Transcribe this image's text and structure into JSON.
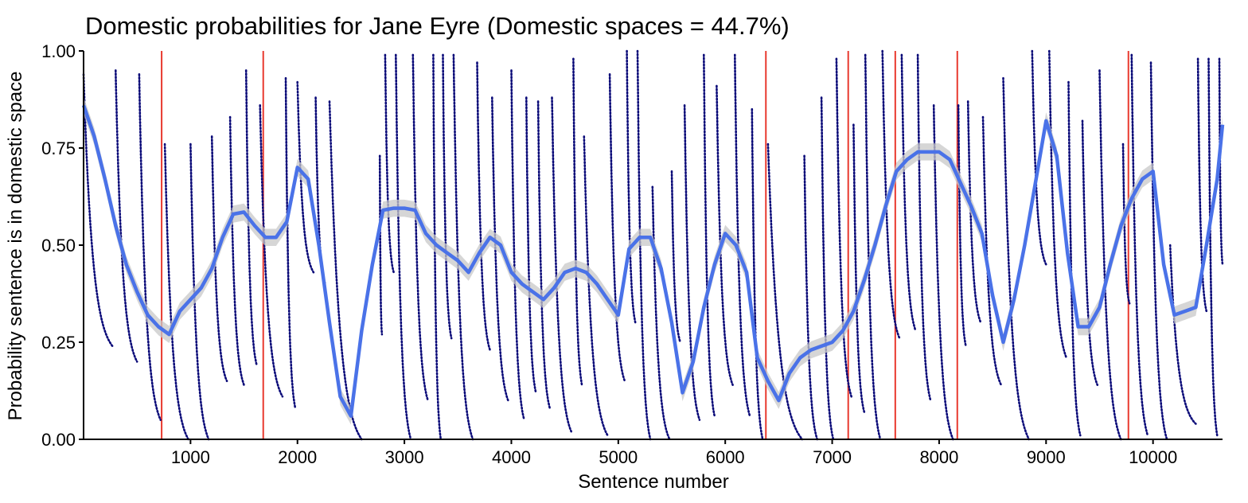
{
  "chart_data": {
    "type": "line",
    "title": "Domestic probabilities for Jane Eyre (Domestic spaces = 44.7%)",
    "xlabel": "Sentence number",
    "ylabel": "Probability sentence is in domestic space",
    "xlim": [
      0,
      10650
    ],
    "ylim": [
      0,
      1
    ],
    "xticks": [
      1000,
      2000,
      3000,
      4000,
      5000,
      6000,
      7000,
      8000,
      9000,
      10000
    ],
    "yticks": [
      "0.00",
      "0.25",
      "0.50",
      "0.75",
      "1.00"
    ],
    "grid": false,
    "legend": "none",
    "colors": {
      "points": "#0a0a78",
      "smooth": "#4a72e8",
      "ribbon": "#c8c8c8",
      "vlines": "#e8392e"
    },
    "vlines": [
      730,
      1680,
      6380,
      7150,
      7590,
      8170,
      9770
    ],
    "smooth": {
      "x": [
        0,
        100,
        200,
        300,
        400,
        500,
        600,
        700,
        800,
        900,
        1000,
        1100,
        1200,
        1300,
        1400,
        1500,
        1600,
        1700,
        1800,
        1900,
        2000,
        2100,
        2200,
        2300,
        2400,
        2500,
        2600,
        2700,
        2800,
        2900,
        3000,
        3100,
        3200,
        3300,
        3400,
        3500,
        3600,
        3700,
        3800,
        3900,
        4000,
        4100,
        4200,
        4300,
        4400,
        4500,
        4600,
        4700,
        4800,
        4900,
        5000,
        5100,
        5200,
        5300,
        5400,
        5500,
        5600,
        5700,
        5800,
        5900,
        6000,
        6100,
        6200,
        6300,
        6400,
        6500,
        6600,
        6700,
        6800,
        6900,
        7000,
        7100,
        7200,
        7300,
        7400,
        7500,
        7600,
        7700,
        7800,
        7900,
        8000,
        8100,
        8200,
        8300,
        8400,
        8500,
        8600,
        8700,
        8800,
        8900,
        9000,
        9100,
        9200,
        9300,
        9400,
        9500,
        9600,
        9700,
        9800,
        9900,
        10000,
        10100,
        10200,
        10300,
        10400,
        10500,
        10600,
        10650
      ],
      "y": [
        0.86,
        0.78,
        0.67,
        0.55,
        0.45,
        0.38,
        0.32,
        0.29,
        0.27,
        0.33,
        0.36,
        0.39,
        0.44,
        0.52,
        0.58,
        0.585,
        0.55,
        0.52,
        0.52,
        0.56,
        0.7,
        0.67,
        0.5,
        0.3,
        0.11,
        0.06,
        0.28,
        0.45,
        0.59,
        0.595,
        0.595,
        0.59,
        0.53,
        0.5,
        0.48,
        0.46,
        0.43,
        0.48,
        0.52,
        0.5,
        0.43,
        0.4,
        0.38,
        0.36,
        0.39,
        0.43,
        0.44,
        0.43,
        0.4,
        0.36,
        0.32,
        0.49,
        0.52,
        0.52,
        0.44,
        0.3,
        0.12,
        0.2,
        0.34,
        0.45,
        0.53,
        0.5,
        0.43,
        0.21,
        0.15,
        0.1,
        0.17,
        0.21,
        0.23,
        0.24,
        0.25,
        0.28,
        0.33,
        0.41,
        0.5,
        0.6,
        0.69,
        0.72,
        0.74,
        0.74,
        0.74,
        0.72,
        0.66,
        0.6,
        0.53,
        0.37,
        0.25,
        0.36,
        0.5,
        0.66,
        0.82,
        0.73,
        0.48,
        0.29,
        0.29,
        0.34,
        0.45,
        0.55,
        0.62,
        0.67,
        0.69,
        0.45,
        0.32,
        0.33,
        0.34,
        0.5,
        0.67,
        0.81
      ]
    },
    "points": {
      "decay_segments_x": [
        [
          0,
          270
        ],
        [
          300,
          500
        ],
        [
          520,
          720
        ],
        [
          760,
          980
        ],
        [
          1000,
          1170
        ],
        [
          1200,
          1340
        ],
        [
          1370,
          1500
        ],
        [
          1520,
          1620
        ],
        [
          1650,
          1860
        ],
        [
          1890,
          1980
        ],
        [
          2000,
          2150
        ],
        [
          2170,
          2260
        ],
        [
          2300,
          2600
        ],
        [
          2770,
          2790
        ],
        [
          2820,
          2900
        ],
        [
          2920,
          3060
        ],
        [
          3080,
          3220
        ],
        [
          3270,
          3340
        ],
        [
          3360,
          3440
        ],
        [
          3460,
          3640
        ],
        [
          3680,
          3800
        ],
        [
          3820,
          3970
        ],
        [
          4000,
          4120
        ],
        [
          4140,
          4230
        ],
        [
          4250,
          4360
        ],
        [
          4380,
          4560
        ],
        [
          4580,
          4660
        ],
        [
          4680,
          4900
        ],
        [
          4920,
          5060
        ],
        [
          5080,
          5160
        ],
        [
          5180,
          5300
        ],
        [
          5320,
          5480
        ],
        [
          5500,
          5580
        ],
        [
          5620,
          5760
        ],
        [
          5800,
          5900
        ],
        [
          5920,
          6070
        ],
        [
          6090,
          6230
        ],
        [
          6250,
          6350
        ],
        [
          6400,
          6720
        ],
        [
          6740,
          6860
        ],
        [
          6900,
          7010
        ],
        [
          7040,
          7180
        ],
        [
          7200,
          7300
        ],
        [
          7310,
          7450
        ],
        [
          7470,
          7630
        ],
        [
          7650,
          7780
        ],
        [
          7800,
          7920
        ],
        [
          7950,
          8130
        ],
        [
          8180,
          8250
        ],
        [
          8270,
          8390
        ],
        [
          8410,
          8580
        ],
        [
          8600,
          8840
        ],
        [
          8870,
          9000
        ],
        [
          9030,
          9190
        ],
        [
          9210,
          9320
        ],
        [
          9340,
          9480
        ],
        [
          9500,
          9700
        ],
        [
          9720,
          9780
        ],
        [
          9800,
          9950
        ],
        [
          9980,
          10130
        ],
        [
          10160,
          10400
        ],
        [
          10420,
          10500
        ],
        [
          10520,
          10600
        ],
        [
          10620,
          10650
        ]
      ],
      "decay_segments_y0": [
        0.94,
        0.95,
        0.94,
        0.76,
        0.76,
        0.78,
        0.83,
        0.95,
        0.86,
        0.93,
        0.92,
        0.88,
        0.87,
        0.73,
        0.99,
        0.99,
        0.99,
        0.99,
        0.99,
        0.99,
        0.97,
        0.88,
        0.95,
        0.88,
        0.87,
        0.88,
        0.98,
        0.78,
        0.94,
        1.0,
        1.0,
        0.65,
        0.69,
        0.86,
        0.99,
        0.91,
        0.99,
        0.85,
        0.76,
        0.73,
        0.88,
        0.98,
        0.81,
        0.99,
        1.0,
        0.99,
        0.99,
        0.86,
        0.86,
        0.87,
        0.83,
        0.93,
        1.0,
        1.0,
        0.92,
        0.82,
        0.95,
        0.76,
        0.99,
        0.97,
        0.5,
        0.98,
        0.98,
        0.98
      ],
      "decay_segments_y1": [
        0.24,
        0.2,
        0.05,
        0.0,
        0.0,
        0.15,
        0.14,
        0.19,
        0.11,
        0.08,
        0.43,
        0.4,
        0.0,
        0.27,
        0.43,
        0.0,
        0.1,
        0.0,
        0.26,
        0.0,
        0.23,
        0.1,
        0.05,
        0.12,
        0.08,
        0.02,
        0.14,
        0.01,
        0.15,
        0.3,
        0.0,
        0.0,
        0.25,
        0.05,
        0.06,
        0.14,
        0.06,
        0.0,
        0.0,
        0.0,
        0.0,
        0.11,
        0.07,
        0.0,
        0.26,
        0.28,
        0.1,
        0.0,
        0.24,
        0.3,
        0.14,
        0.0,
        0.45,
        0.21,
        0.01,
        0.14,
        0.0,
        0.35,
        0.01,
        0.0,
        0.04,
        0.33,
        0.01,
        0.45
      ]
    }
  }
}
